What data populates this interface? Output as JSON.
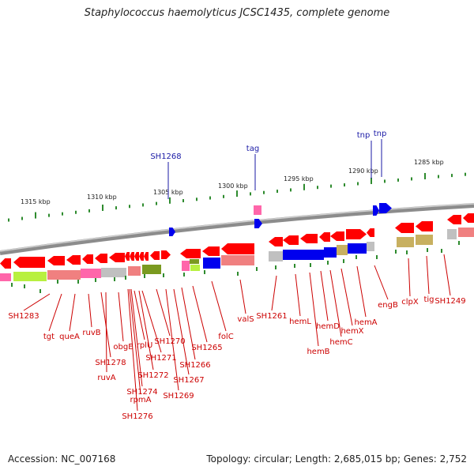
{
  "title": "Staphylococcus haemolyticus JCSC1435, complete genome",
  "footer": {
    "accession": "Accession: NC_007168",
    "info": "Topology: circular; Length: 2,685,015 bp; Genes: 2,752"
  },
  "colors": {
    "backbone": "#8c8c8c",
    "tick": "#2e8b2e",
    "forward_gene": "#ff0000",
    "reverse_gene": "#ff0000",
    "top_label": "#1a1aa6",
    "bottom_label": "#cc0000",
    "cog_blue": "#0000ee",
    "cog_pink": "#ff66aa",
    "cog_lime": "#b8f040",
    "cog_salmon": "#f08080",
    "cog_gray": "#c0c0c0",
    "cog_olive": "#7a9a20",
    "cog_tan": "#c8b060"
  },
  "scale_labels": [
    "1315 kbp",
    "1310 kbp",
    "1305 kbp",
    "1300 kbp",
    "1295 kbp",
    "1290 kbp",
    "1285 kbp"
  ],
  "top_features": [
    "SH1268",
    "tag",
    "tnp",
    "tnp"
  ],
  "bottom_features": [
    "SH1283",
    "tgt",
    "queA",
    "ruvB",
    "SH1278",
    "ruvA",
    "obgE",
    "rplU",
    "SH1272",
    "SH1274",
    "rpmA",
    "SH1276",
    "SH1271",
    "SH1270",
    "SH1269",
    "SH1267",
    "SH1266",
    "SH1265",
    "folC",
    "valS",
    "SH1261",
    "hemL",
    "hemB",
    "hemD",
    "hemC",
    "hemX",
    "hemA",
    "engB",
    "clpX",
    "tig",
    "SH1249"
  ]
}
